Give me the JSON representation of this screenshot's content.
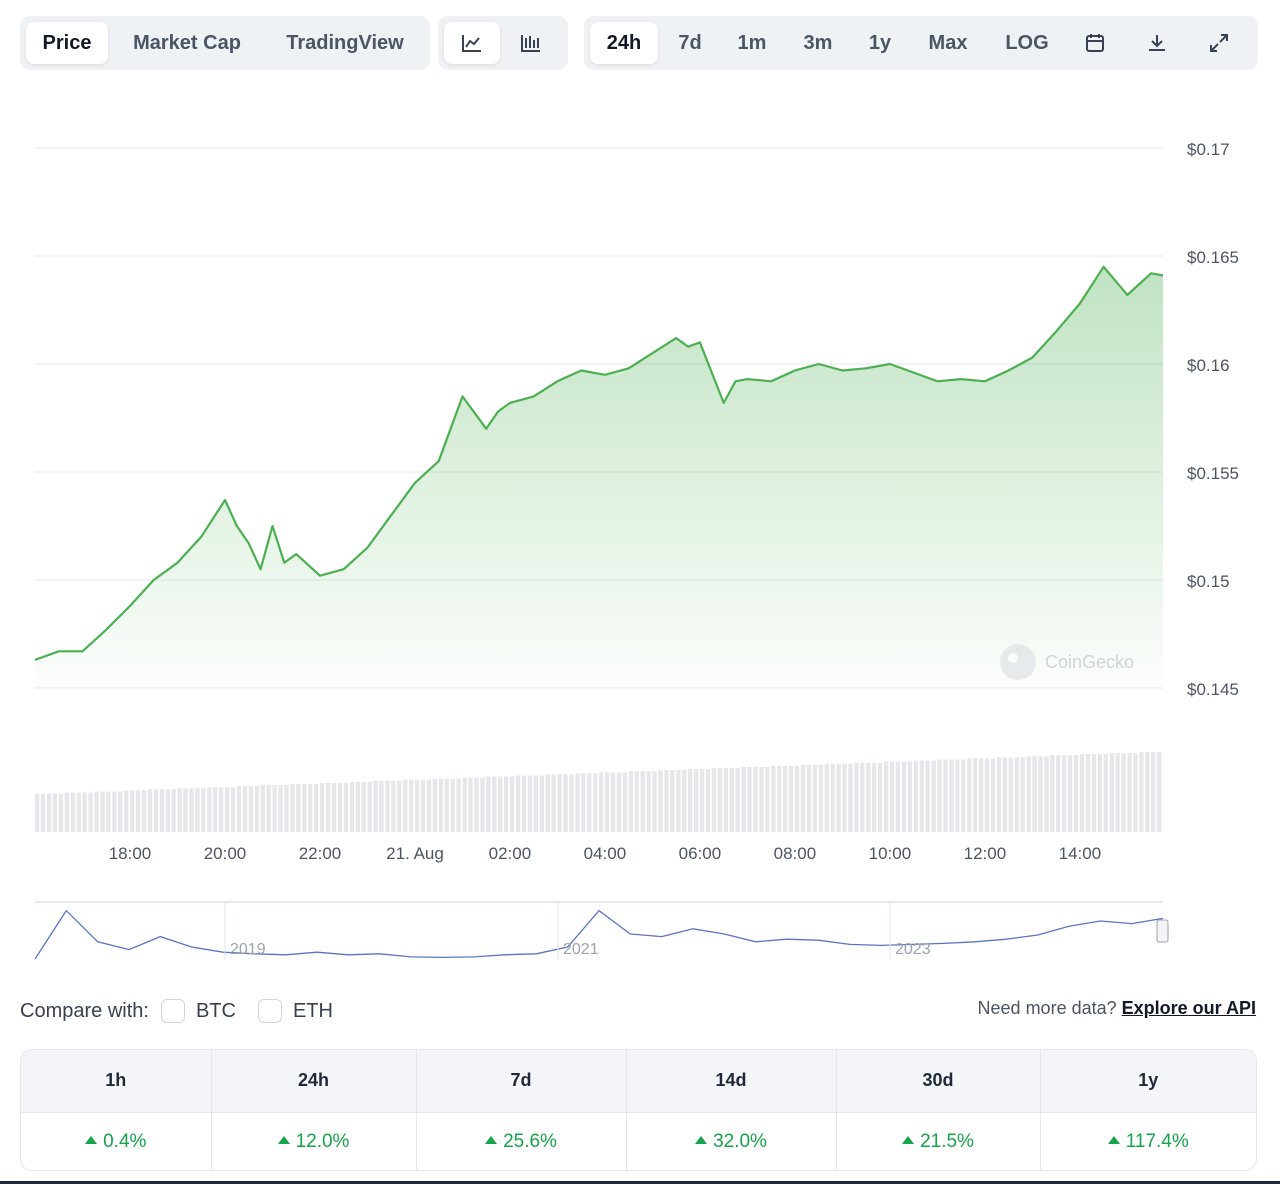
{
  "toolbar": {
    "views": [
      "Price",
      "Market Cap",
      "TradingView"
    ],
    "active_view": "Price",
    "chart_types": [
      "line-chart-icon",
      "candlestick-chart-icon"
    ],
    "active_chart_type": "line-chart-icon",
    "ranges": [
      "24h",
      "7d",
      "1m",
      "3m",
      "1y",
      "Max",
      "LOG"
    ],
    "active_range": "24h",
    "tools": [
      "calendar-icon",
      "download-icon",
      "fullscreen-icon"
    ]
  },
  "chart_data": {
    "type": "area",
    "line_color": "#4caf50",
    "fill_color": "#4caf50",
    "ylim": [
      0.145,
      0.17
    ],
    "yticks": [
      "$0.17",
      "$0.165",
      "$0.16",
      "$0.155",
      "$0.15",
      "$0.145"
    ],
    "xticks": [
      "18:00",
      "20:00",
      "22:00",
      "21. Aug",
      "02:00",
      "04:00",
      "06:00",
      "08:00",
      "10:00",
      "12:00",
      "14:00"
    ],
    "watermark": "CoinGecko",
    "series": [
      {
        "x": [
          "16:00",
          "16:30",
          "17:00",
          "17:30",
          "18:00",
          "18:30",
          "19:00",
          "19:30",
          "20:00",
          "20:15",
          "20:30",
          "20:45",
          "21:00",
          "21:15",
          "21:30",
          "22:00",
          "22:30",
          "23:00",
          "23:30",
          "00:00",
          "00:30",
          "01:00",
          "01:30",
          "01:45",
          "02:00",
          "02:30",
          "03:00",
          "03:30",
          "04:00",
          "04:30",
          "05:00",
          "05:30",
          "05:45",
          "06:00",
          "06:30",
          "06:45",
          "07:00",
          "07:30",
          "08:00",
          "08:30",
          "09:00",
          "09:30",
          "10:00",
          "10:30",
          "11:00",
          "11:30",
          "12:00",
          "12:30",
          "13:00",
          "13:30",
          "14:00",
          "14:30",
          "15:00",
          "15:30",
          "15:45"
        ],
        "values": [
          0.1463,
          0.1467,
          0.1467,
          0.1477,
          0.1488,
          0.15,
          0.1508,
          0.152,
          0.1537,
          0.1525,
          0.1517,
          0.1505,
          0.1525,
          0.1508,
          0.1512,
          0.1502,
          0.1505,
          0.1515,
          0.153,
          0.1545,
          0.1555,
          0.1585,
          0.157,
          0.1578,
          0.1582,
          0.1585,
          0.1592,
          0.1597,
          0.1595,
          0.1598,
          0.1605,
          0.1612,
          0.1608,
          0.161,
          0.1582,
          0.1592,
          0.1593,
          0.1592,
          0.1597,
          0.16,
          0.1597,
          0.1598,
          0.16,
          0.1596,
          0.1592,
          0.1593,
          0.1592,
          0.1597,
          0.1603,
          0.1615,
          0.1628,
          0.1645,
          0.1632,
          0.1642,
          0.1641
        ]
      }
    ],
    "volume": {
      "values": [
        36,
        37,
        38,
        39,
        40,
        41,
        42,
        43,
        44,
        45,
        46,
        47,
        48,
        49,
        50,
        51,
        52,
        53,
        54,
        55,
        56,
        57,
        58,
        59,
        60,
        61,
        62,
        63,
        64,
        65,
        66,
        67,
        68,
        69,
        70,
        71,
        72,
        73,
        74,
        75
      ]
    },
    "navigator": {
      "labels": [
        "2019",
        "2021",
        "2023"
      ],
      "values": [
        0.02,
        0.95,
        0.35,
        0.2,
        0.45,
        0.25,
        0.15,
        0.12,
        0.1,
        0.15,
        0.1,
        0.12,
        0.06,
        0.05,
        0.06,
        0.1,
        0.12,
        0.25,
        0.95,
        0.5,
        0.45,
        0.6,
        0.5,
        0.35,
        0.4,
        0.38,
        0.3,
        0.28,
        0.3,
        0.32,
        0.35,
        0.4,
        0.48,
        0.65,
        0.75,
        0.7,
        0.8
      ]
    }
  },
  "compare": {
    "label": "Compare with:",
    "options": [
      "BTC",
      "ETH"
    ]
  },
  "api": {
    "text": "Need more data?",
    "link": "Explore our API"
  },
  "performance": {
    "headers": [
      "1h",
      "24h",
      "7d",
      "14d",
      "30d",
      "1y"
    ],
    "values": [
      "0.4%",
      "12.0%",
      "25.6%",
      "32.0%",
      "21.5%",
      "117.4%"
    ],
    "color": "#16a34a"
  }
}
